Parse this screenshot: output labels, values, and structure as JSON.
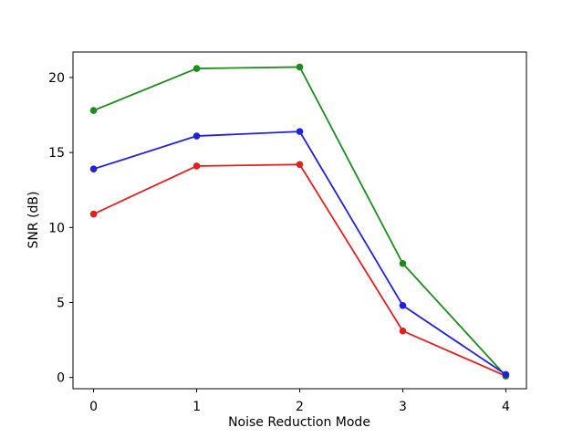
{
  "chart_data": {
    "type": "line",
    "title": "",
    "xlabel": "Noise Reduction Mode",
    "ylabel": "SNR (dB)",
    "x": [
      0,
      1,
      2,
      3,
      4
    ],
    "xticks": [
      0,
      1,
      2,
      3,
      4
    ],
    "xtick_labels": [
      "0",
      "1",
      "2",
      "3",
      "4"
    ],
    "yticks": [
      0,
      5,
      10,
      15,
      20
    ],
    "ytick_labels": [
      "0",
      "5",
      "10",
      "15",
      "20"
    ],
    "xlim": [
      -0.2,
      4.2
    ],
    "ylim": [
      -0.75,
      21.7
    ],
    "grid": false,
    "legend": null,
    "series": [
      {
        "name": "red",
        "color": "#e22020",
        "marker": "o",
        "values": [
          10.9,
          14.1,
          14.2,
          3.1,
          0.1
        ]
      },
      {
        "name": "green",
        "color": "#1e8b1e",
        "marker": "o",
        "values": [
          17.8,
          20.6,
          20.7,
          7.6,
          0.1
        ]
      },
      {
        "name": "blue",
        "color": "#2121dd",
        "marker": "o",
        "values": [
          13.9,
          16.1,
          16.4,
          4.8,
          0.2
        ]
      }
    ],
    "colors": {
      "background": "#ffffff",
      "spine": "#000000",
      "text": "#000000"
    }
  }
}
